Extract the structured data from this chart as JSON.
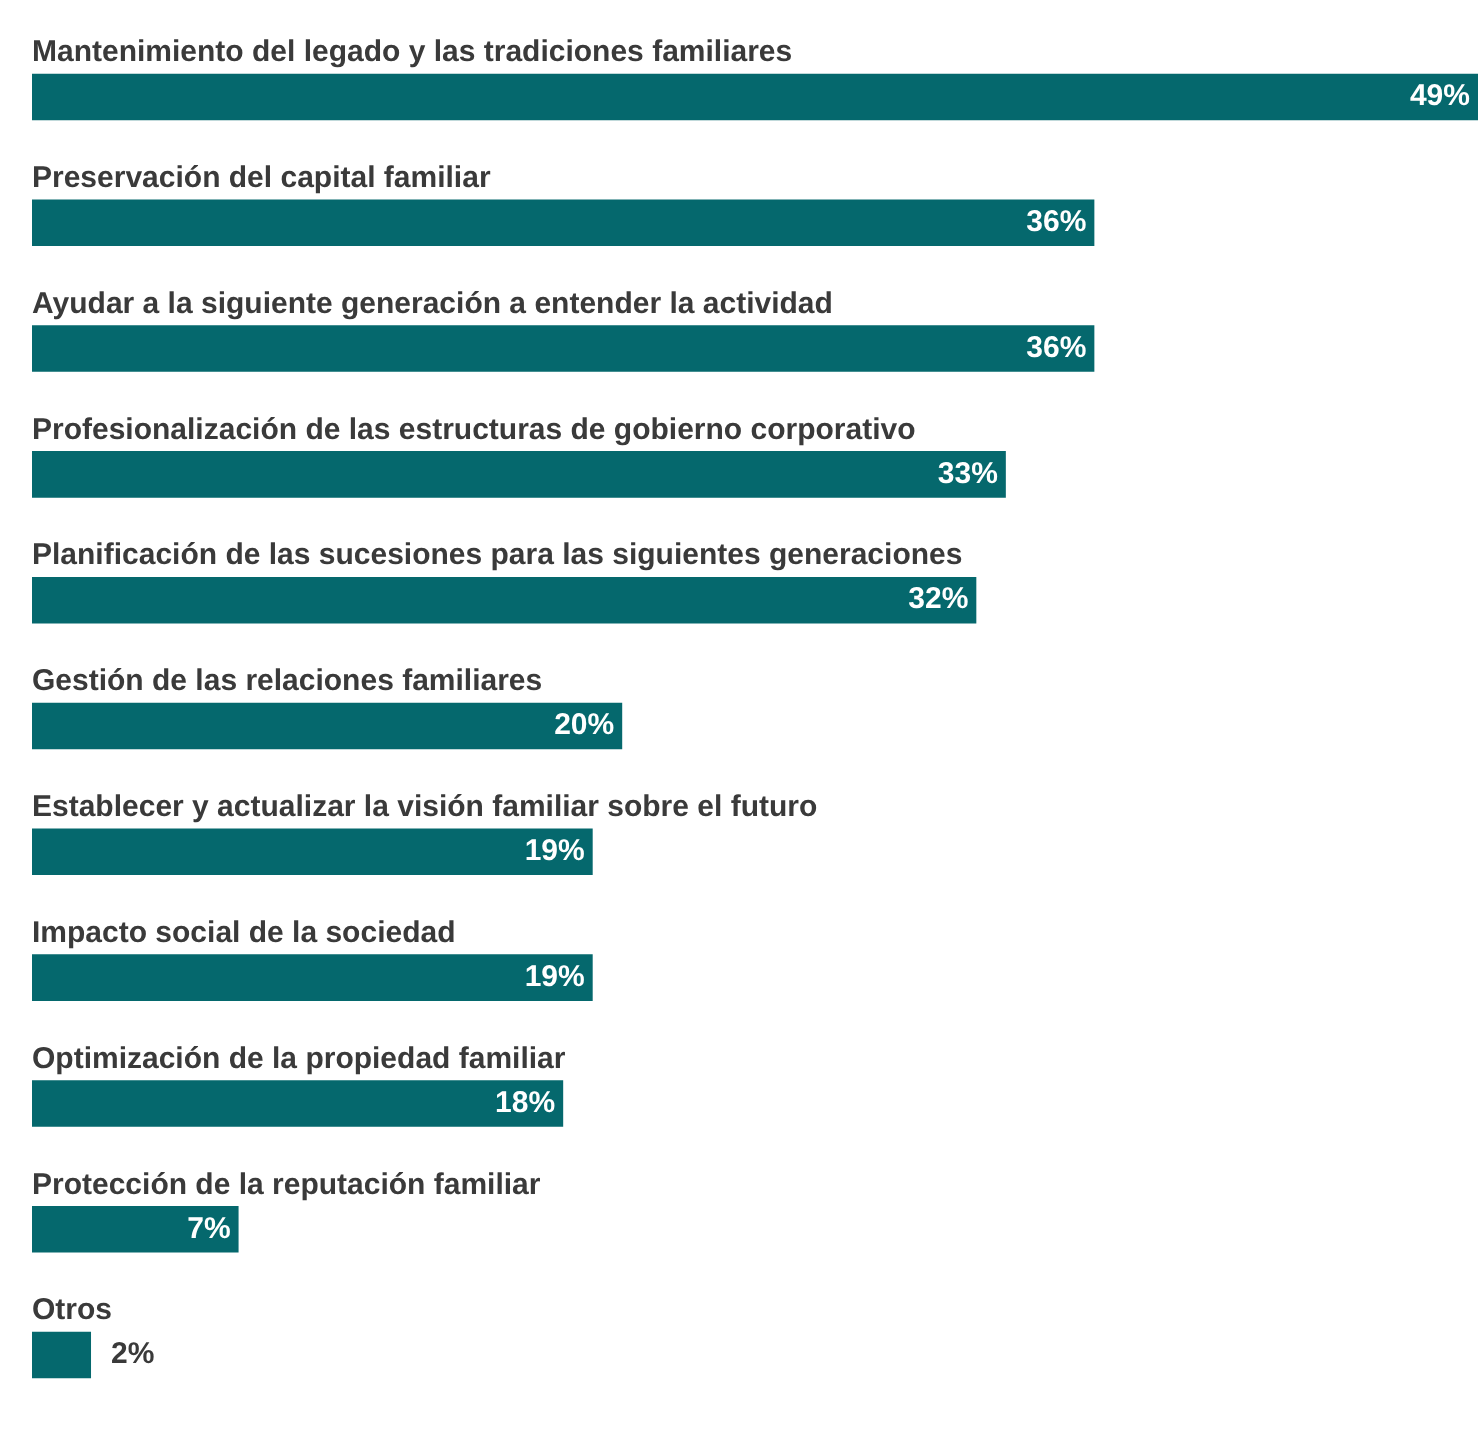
{
  "chart_data": {
    "type": "bar",
    "orientation": "horizontal",
    "categories": [
      "Mantenimiento del legado y las tradiciones familiares",
      "Preservación del capital familiar",
      "Ayudar a la siguiente generación a entender la actividad",
      "Profesionalización de las estructuras de gobierno corporativo",
      "Planificación de las sucesiones para las siguientes generaciones",
      "Gestión de las relaciones familiares",
      "Establecer y actualizar la visión familiar sobre el futuro",
      "Impacto social de la sociedad",
      "Optimización de la propiedad familiar",
      "Protección de la reputación familiar",
      "Otros"
    ],
    "values": [
      49,
      36,
      36,
      33,
      32,
      20,
      19,
      19,
      18,
      7,
      2
    ],
    "value_labels": [
      "49%",
      "36%",
      "36%",
      "33%",
      "32%",
      "20%",
      "19%",
      "19%",
      "18%",
      "7%",
      "2%"
    ],
    "color": "#05686d",
    "legend": false
  }
}
